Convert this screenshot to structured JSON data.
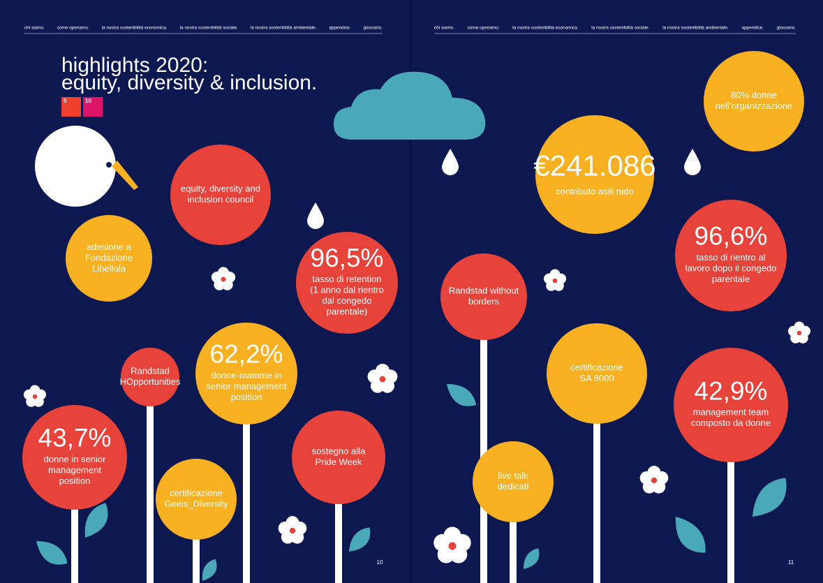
{
  "nav": {
    "left": [
      "chi siamo.",
      "come operiamo.",
      "la nostra sostenibilità economica.",
      "la nostra sostenibilità sociale.",
      "la nostra sostenibilità ambientale.",
      "appendice.",
      "glossario."
    ],
    "right": [
      "chi siamo.",
      "come operiamo.",
      "la nostra sostenibilità economica.",
      "la nostra sostenibilità sociale.",
      "la nostra sostenibilità ambientale.",
      "appendice.",
      "glossario."
    ]
  },
  "header": {
    "title": [
      "highlights 2020:",
      "equity, diversity & inclusion."
    ],
    "sdg_icons": [
      {
        "number": "5",
        "color": "#ef402b"
      },
      {
        "number": "10",
        "color": "#dd1367"
      }
    ]
  },
  "highlights": [
    {
      "lines": [
        "equity, diversity and",
        "inclusion council"
      ],
      "color": "#e8433a"
    },
    {
      "lines": [
        "adesione a",
        "Fondazione",
        "Libellula"
      ],
      "color": "#f9b122"
    },
    {
      "figure": "96,5%",
      "lines": [
        "tasso di retention",
        "(1 anno dal rientro",
        "dal congedo",
        "parentale)"
      ],
      "color": "#e8433a"
    },
    {
      "lines": [
        "Randstad",
        "HOpportunities"
      ],
      "color": "#e8433a"
    },
    {
      "figure": "62,2%",
      "lines": [
        "donne-mamme in",
        "senior management",
        "position"
      ],
      "color": "#f9b122"
    },
    {
      "figure": "43,7%",
      "lines": [
        "donne in senior",
        "management",
        "position"
      ],
      "color": "#e8433a"
    },
    {
      "lines": [
        "certificazione",
        "Geeis_Diversity"
      ],
      "color": "#f9b122"
    },
    {
      "lines": [
        "sostegno alla",
        "Pride Week"
      ],
      "color": "#e8433a"
    },
    {
      "lines": [
        "Randstad without",
        "borders"
      ],
      "color": "#e8433a"
    },
    {
      "figure": "€241.086",
      "lines": [
        "contributo asili nido"
      ],
      "color": "#f9b122"
    },
    {
      "lines": [
        "80% donne",
        "nell’organizzazione"
      ],
      "color": "#f9b122"
    },
    {
      "figure": "96,6%",
      "lines": [
        "tasso di rientro al",
        "lavoro dopo il congedo",
        "parentale"
      ],
      "color": "#e8433a"
    },
    {
      "lines": [
        "certificazione",
        "SA 8000"
      ],
      "color": "#f9b122"
    },
    {
      "figure": "42,9%",
      "lines": [
        "management team",
        "composto da donne"
      ],
      "color": "#e8433a"
    },
    {
      "lines": [
        "live talk",
        "dedicati"
      ],
      "color": "#f9b122"
    }
  ],
  "page_numbers": [
    "10",
    "11"
  ]
}
